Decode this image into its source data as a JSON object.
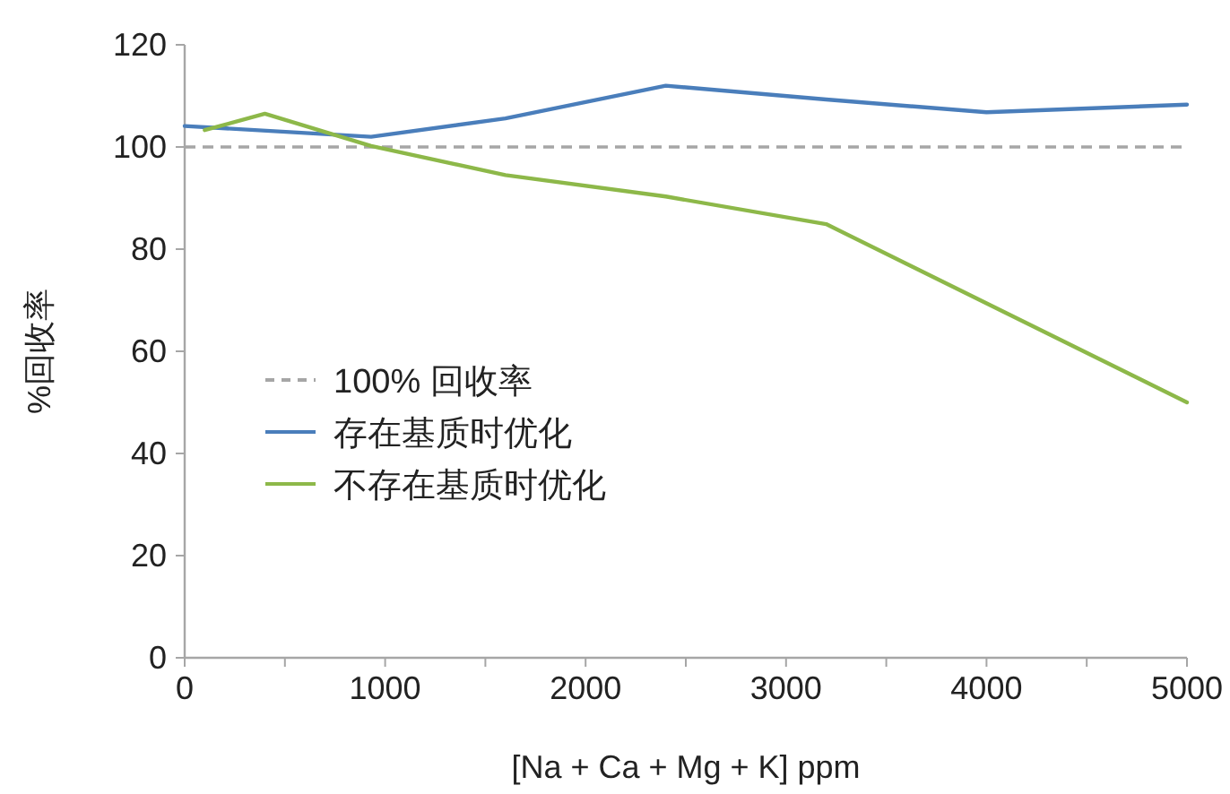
{
  "chart_data": {
    "type": "line",
    "xlabel": "[Na + Ca + Mg + K] ppm",
    "ylabel": "%回收率",
    "xlim": [
      0,
      5000
    ],
    "xticks": [
      0,
      {
        "value": 500,
        "label": null
      },
      1000,
      {
        "value": 1500,
        "label": null
      },
      2000,
      {
        "value": 2500,
        "label": null
      },
      3000,
      {
        "value": 3500,
        "label": null
      },
      4000,
      {
        "value": 4500,
        "label": null
      },
      5000
    ],
    "ylim": [
      0,
      120
    ],
    "yticks": [
      0,
      20,
      40,
      60,
      80,
      100,
      120
    ],
    "grid": false,
    "legend": "left",
    "line_style": "solid",
    "marker": "none",
    "ref_lines": [
      {
        "axis": "y",
        "value": 100,
        "label": "100% 回收率",
        "color": "#a6a6a6",
        "line_style": "dashed"
      }
    ],
    "series": [
      {
        "name": "存在基质时优化",
        "color": "#4a7ebb",
        "x": [
          0,
          930,
          1600,
          2400,
          3200,
          4000,
          5000
        ],
        "values": [
          104.1,
          102,
          105.6,
          112,
          109.3,
          106.8,
          108.3
        ]
      },
      {
        "name": "不存在基质时优化",
        "color": "#8db849",
        "x": [
          100,
          400,
          930,
          1600,
          2400,
          3200,
          5000
        ],
        "values": [
          103.3,
          106.5,
          100.2,
          94.5,
          90.3,
          84.9,
          50
        ]
      }
    ]
  }
}
